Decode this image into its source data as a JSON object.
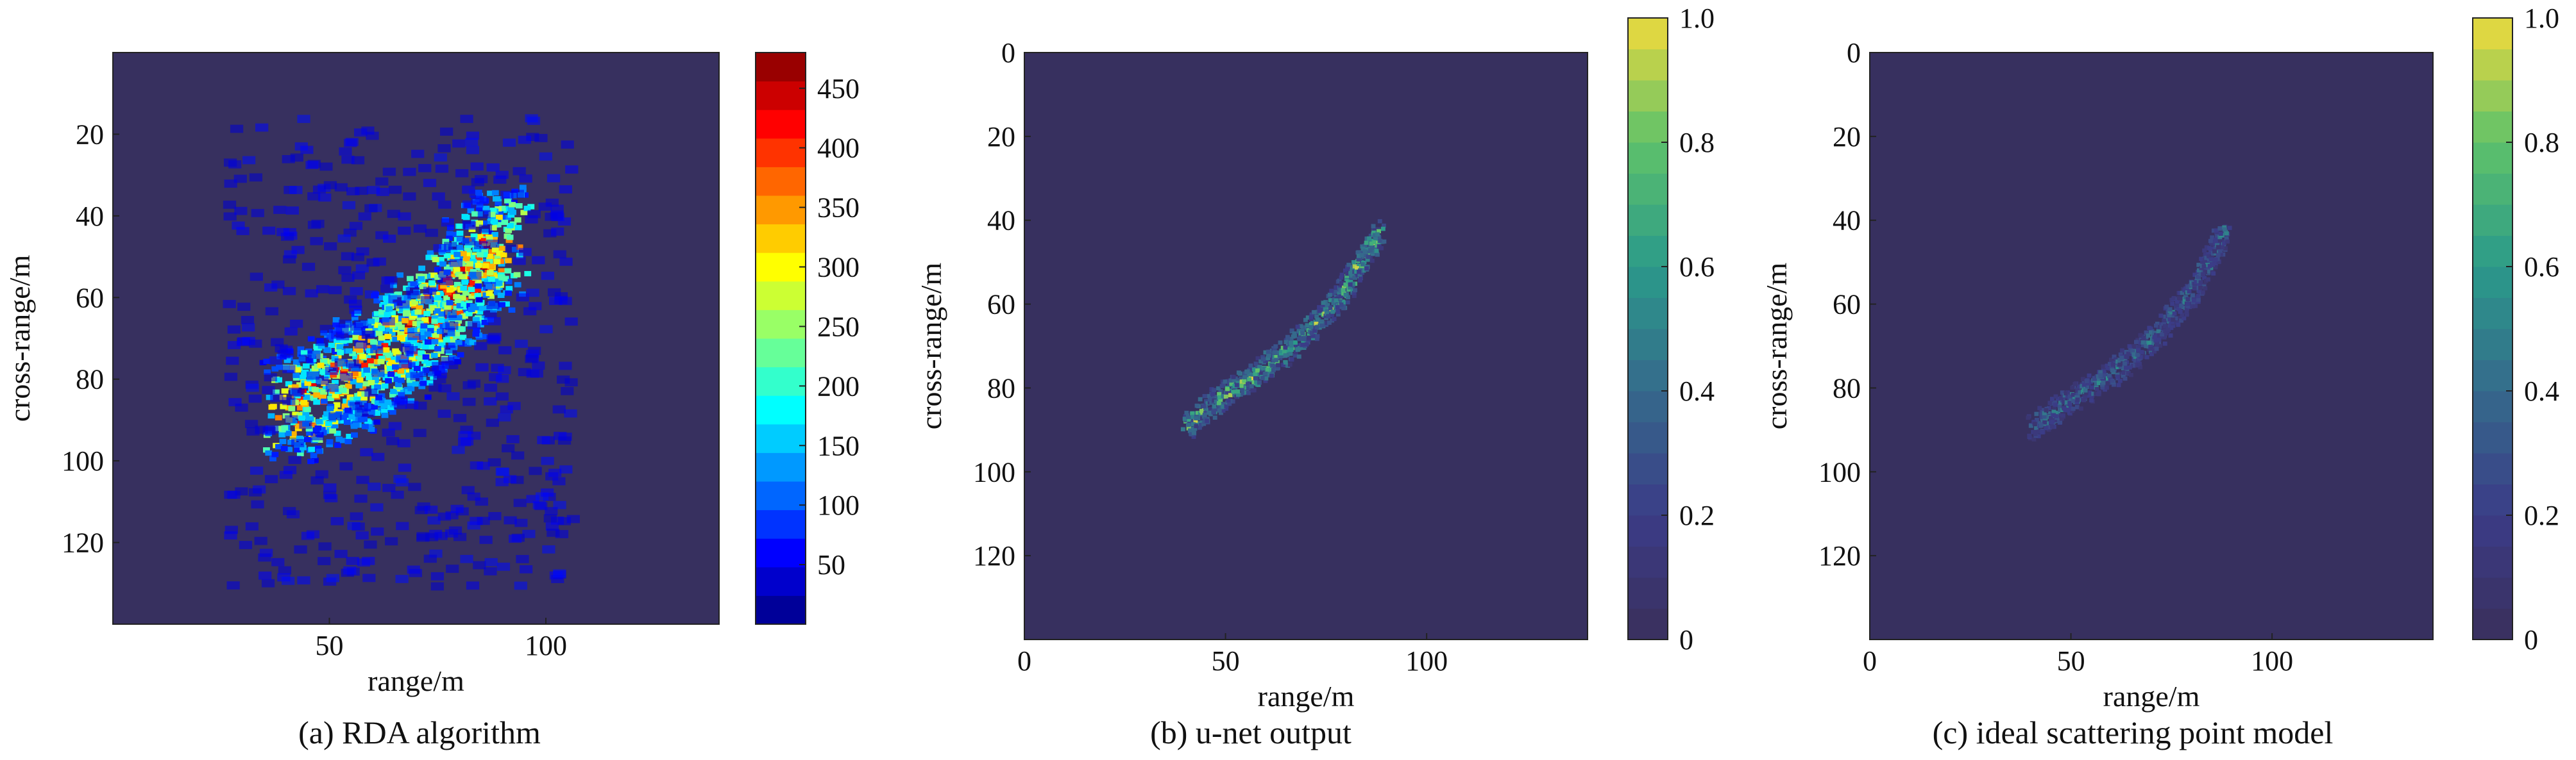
{
  "chart_data": [
    {
      "type": "heatmap",
      "caption": "(a) RDA algorithm",
      "xlabel": "range/m",
      "ylabel": "cross-range/m",
      "xlim": [
        0,
        140
      ],
      "ylim": [
        140,
        0
      ],
      "x_ticks": [
        "50",
        "100"
      ],
      "x_tick_values": [
        50,
        100
      ],
      "y_ticks": [
        "20",
        "40",
        "60",
        "80",
        "100",
        "120"
      ],
      "y_tick_values": [
        20,
        40,
        60,
        80,
        100,
        120
      ],
      "colorbar": {
        "range": [
          0,
          480
        ],
        "ticks": [
          "50",
          "100",
          "150",
          "200",
          "250",
          "300",
          "350",
          "400",
          "450"
        ],
        "tick_values": [
          50,
          100,
          150,
          200,
          250,
          300,
          350,
          400,
          450
        ],
        "colormap": "jet",
        "stepped": true,
        "steps": 20
      },
      "background_color": "#37305f",
      "ridge": {
        "points": [
          [
            40,
            88
          ],
          [
            55,
            78
          ],
          [
            65,
            72
          ],
          [
            75,
            62
          ],
          [
            85,
            50
          ],
          [
            90,
            44
          ]
        ],
        "peak_value": 470,
        "spread": "wide"
      }
    },
    {
      "type": "heatmap",
      "caption": "(b) u-net output",
      "xlabel": "range/m",
      "ylabel": "cross-range/m",
      "xlim": [
        0,
        140
      ],
      "ylim": [
        140,
        0
      ],
      "x_ticks": [
        "0",
        "50",
        "100"
      ],
      "x_tick_values": [
        0,
        50,
        100
      ],
      "y_ticks": [
        "0",
        "20",
        "40",
        "60",
        "80",
        "100",
        "120"
      ],
      "y_tick_values": [
        0,
        20,
        40,
        60,
        80,
        100,
        120
      ],
      "colorbar": {
        "range": [
          0,
          1
        ],
        "ticks": [
          "0",
          "0.2",
          "0.4",
          "0.6",
          "0.8",
          "1.0"
        ],
        "tick_values": [
          0,
          0.2,
          0.4,
          0.6,
          0.8,
          1.0
        ],
        "colormap": "viridis",
        "stepped": true,
        "steps": 20
      },
      "background_color": "#37305f",
      "ridge": {
        "points": [
          [
            40,
            89
          ],
          [
            48,
            82
          ],
          [
            58,
            76
          ],
          [
            68,
            68
          ],
          [
            78,
            58
          ],
          [
            88,
            42
          ]
        ],
        "peak_value": 1.0,
        "spread": "narrow"
      }
    },
    {
      "type": "heatmap",
      "caption": "(c) ideal scattering point model",
      "xlabel": "range/m",
      "ylabel": "cross-range/m",
      "xlim": [
        0,
        140
      ],
      "ylim": [
        140,
        0
      ],
      "x_ticks": [
        "0",
        "50",
        "100"
      ],
      "x_tick_values": [
        0,
        50,
        100
      ],
      "y_ticks": [
        "0",
        "20",
        "40",
        "60",
        "80",
        "100",
        "120"
      ],
      "y_tick_values": [
        0,
        20,
        40,
        60,
        80,
        100,
        120
      ],
      "colorbar": {
        "range": [
          0,
          1
        ],
        "ticks": [
          "0",
          "0.2",
          "0.4",
          "0.6",
          "0.8",
          "1.0"
        ],
        "tick_values": [
          0,
          0.2,
          0.4,
          0.6,
          0.8,
          1.0
        ],
        "colormap": "viridis",
        "stepped": true,
        "steps": 20
      },
      "background_color": "#37305f",
      "ridge": {
        "points": [
          [
            40,
            89
          ],
          [
            50,
            82
          ],
          [
            60,
            76
          ],
          [
            70,
            68
          ],
          [
            80,
            56
          ],
          [
            88,
            42
          ]
        ],
        "peak_value": 0.6,
        "spread": "narrow"
      }
    }
  ]
}
